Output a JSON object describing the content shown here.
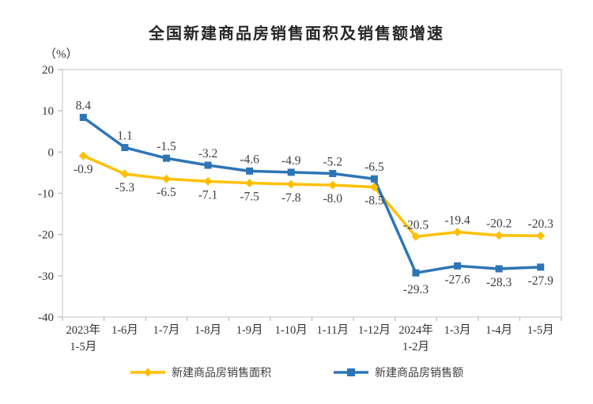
{
  "title": "全国新建商品房销售面积及销售额增速",
  "axes": {
    "unit_label": "（%）",
    "y_ticks": [
      20,
      10,
      0,
      -10,
      -20,
      -30,
      -40
    ]
  },
  "colors": {
    "sales_area_series": "#FFC000",
    "sales_amount_series": "#2E75B6",
    "axis_border": "#D9D9D9",
    "tick_mark": "#C6C6C6",
    "data_label_text": "#404040",
    "axis_text": "#333333",
    "title_text": "#262626"
  },
  "chart_data": {
    "type": "line",
    "title": "全国新建商品房销售面积及销售额增速",
    "ylabel": "（%）",
    "xlabel": "",
    "ylim": [
      -40,
      20
    ],
    "y_ticks": [
      20,
      10,
      0,
      -10,
      -20,
      -30,
      -40
    ],
    "grid": false,
    "legend_position": "bottom",
    "categories": [
      "2023年\n1-5月",
      "1-6月",
      "1-7月",
      "1-8月",
      "1-9月",
      "1-10月",
      "1-11月",
      "1-12月",
      "2024年\n1-2月",
      "1-3月",
      "1-4月",
      "1-5月"
    ],
    "series": [
      {
        "id": "sales-area",
        "name": "新建商品房销售面积",
        "color": "#FFC000",
        "marker": "diamond",
        "values": [
          -0.9,
          -5.3,
          -6.5,
          -7.1,
          -7.5,
          -7.8,
          -8.0,
          -8.5,
          -20.5,
          -19.4,
          -20.2,
          -20.3
        ],
        "label_side": [
          "below",
          "below",
          "below",
          "below",
          "below",
          "below",
          "below",
          "below",
          "above",
          "above",
          "above",
          "above"
        ]
      },
      {
        "id": "sales-amount",
        "name": "新建商品房销售额",
        "color": "#2E75B6",
        "marker": "square",
        "values": [
          8.4,
          1.1,
          -1.5,
          -3.2,
          -4.6,
          -4.9,
          -5.2,
          -6.5,
          -29.3,
          -27.6,
          -28.3,
          -27.9
        ],
        "label_side": [
          "above",
          "above",
          "above",
          "above",
          "above",
          "above",
          "above",
          "above",
          "below",
          "below",
          "below",
          "below"
        ]
      }
    ]
  }
}
